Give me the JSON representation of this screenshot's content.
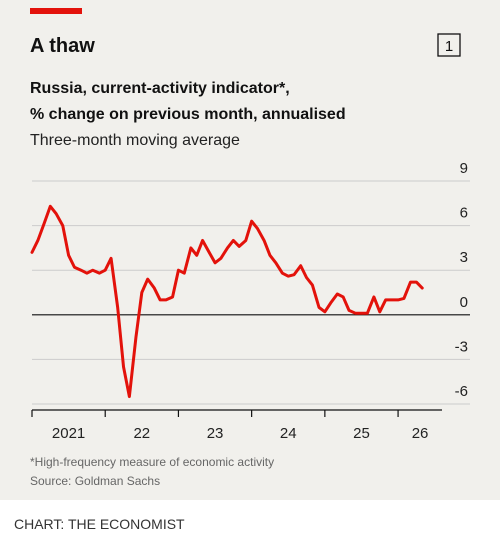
{
  "chart_data": {
    "type": "line",
    "title": "A thaw",
    "badge": "1",
    "subtitle": [
      "Russia, current-activity indicator*,",
      "% change on previous month, annualised"
    ],
    "note": "Three-month moving average",
    "footnote": "*High-frequency measure of economic activity",
    "source": "Source: Goldman Sachs",
    "credit": "CHART: THE ECONOMIST",
    "color": "#e3120b",
    "x": [
      2021.0,
      2021.08,
      2021.17,
      2021.25,
      2021.33,
      2021.42,
      2021.5,
      2021.58,
      2021.67,
      2021.75,
      2021.83,
      2021.92,
      2022.0,
      2022.08,
      2022.17,
      2022.25,
      2022.33,
      2022.42,
      2022.5,
      2022.58,
      2022.67,
      2022.75,
      2022.83,
      2022.92,
      2023.0,
      2023.08,
      2023.17,
      2023.25,
      2023.33,
      2023.42,
      2023.5,
      2023.58,
      2023.67,
      2023.75,
      2023.83,
      2023.92,
      2024.0,
      2024.08,
      2024.17,
      2024.25,
      2024.33,
      2024.42,
      2024.5,
      2024.58,
      2024.67,
      2024.75,
      2024.83,
      2024.92,
      2025.0,
      2025.08,
      2025.17,
      2025.25,
      2025.33,
      2025.42,
      2025.5,
      2025.58,
      2025.67,
      2025.75,
      2025.83,
      2025.92,
      2026.0,
      2026.08,
      2026.17,
      2026.25,
      2026.33
    ],
    "values": [
      4.2,
      5.0,
      6.2,
      7.3,
      6.8,
      6.0,
      4.0,
      3.2,
      3.0,
      2.8,
      3.0,
      2.8,
      3.0,
      3.8,
      0.5,
      -3.5,
      -5.5,
      -1.5,
      1.5,
      2.4,
      1.8,
      1.0,
      1.0,
      1.2,
      3.0,
      2.8,
      4.5,
      4.0,
      5.0,
      4.2,
      3.5,
      3.8,
      4.5,
      5.0,
      4.6,
      5.0,
      6.3,
      5.8,
      5.0,
      4.0,
      3.5,
      2.8,
      2.6,
      2.7,
      3.3,
      2.5,
      2.0,
      0.5,
      0.2,
      0.8,
      1.4,
      1.2,
      0.3,
      0.1,
      0.1,
      0.1,
      1.2,
      0.2,
      1.0,
      1.0,
      1.0,
      1.1,
      2.2,
      2.2,
      1.8
    ],
    "xlim": [
      2021,
      2026.6
    ],
    "xticks": [
      2021,
      {
        "value": 2022,
        "label": "22"
      },
      {
        "value": 2023,
        "label": "23"
      },
      {
        "value": 2024,
        "label": "24"
      },
      {
        "value": 2025,
        "label": "25"
      },
      {
        "value": 2026,
        "label": "26"
      }
    ],
    "ylim": [
      -6,
      9
    ],
    "yticks": [
      -6,
      -3,
      0,
      3,
      6,
      9
    ],
    "grid": true
  }
}
